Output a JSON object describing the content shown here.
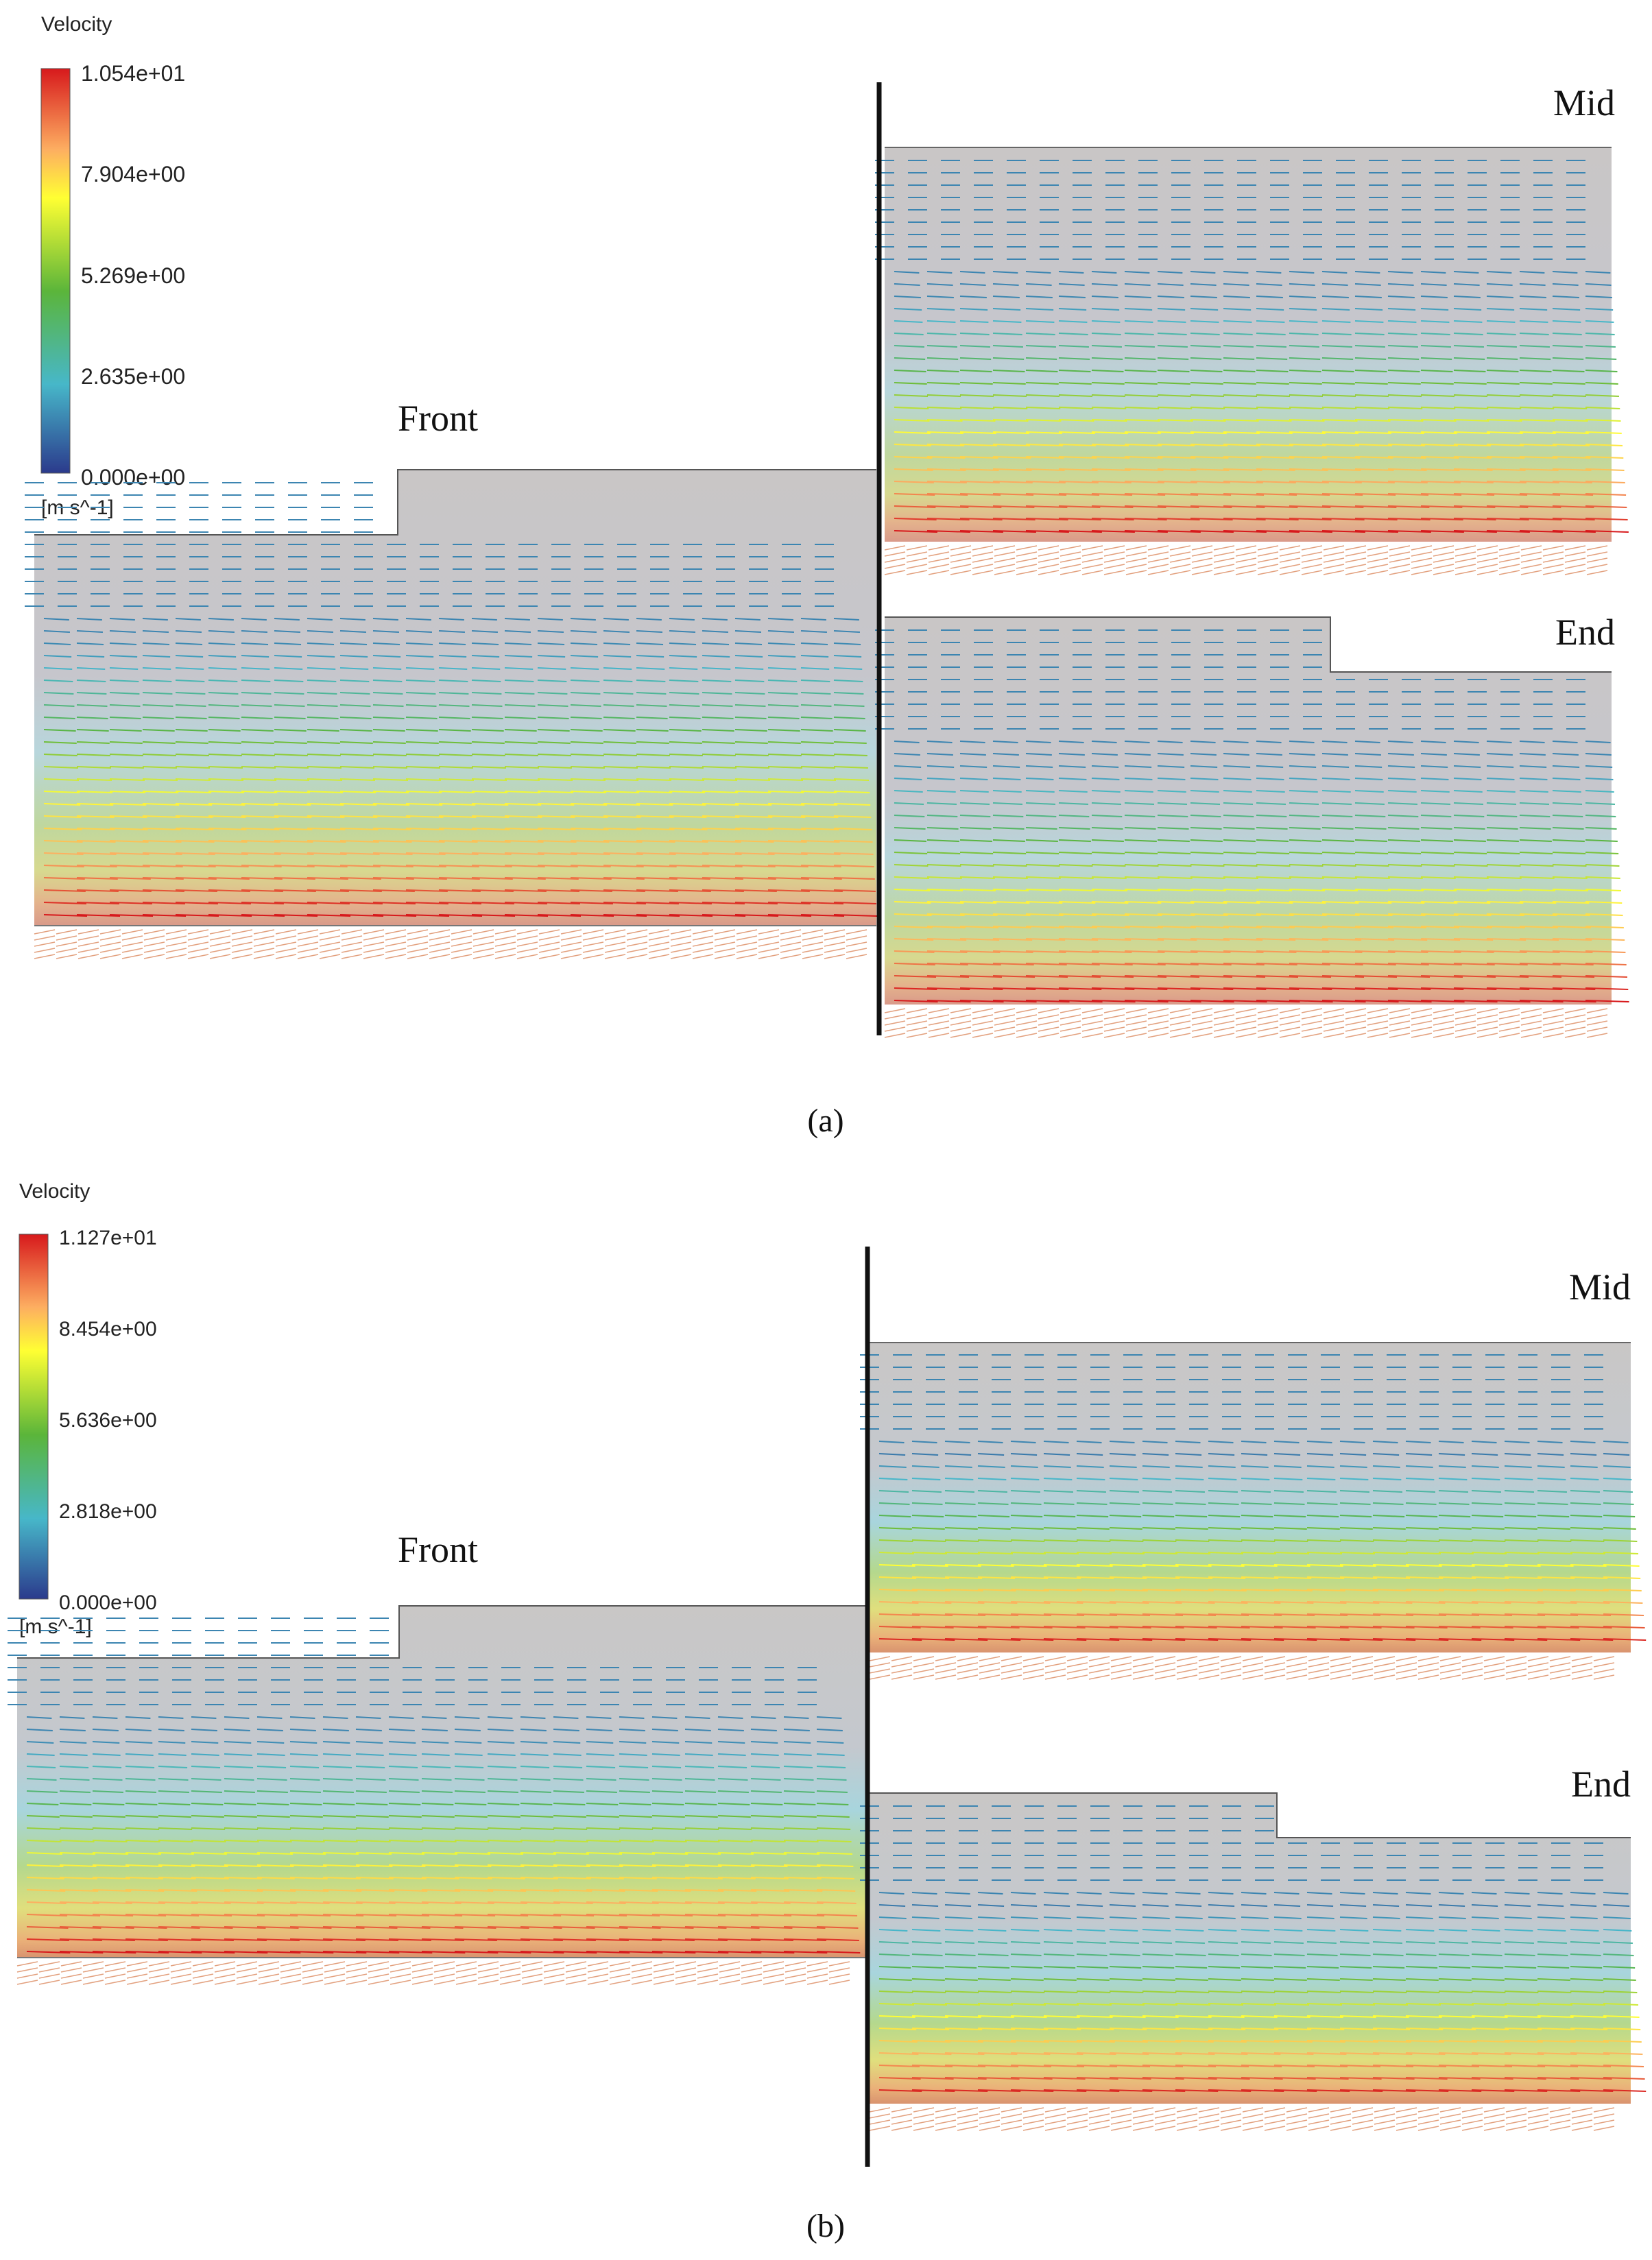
{
  "figure": {
    "panels": [
      {
        "caption": "(a)",
        "legend": {
          "title": "Velocity",
          "ticks": [
            "1.054e+01",
            "7.904e+00",
            "5.269e+00",
            "2.635e+00",
            "0.000e+00"
          ],
          "unit": "[m s^-1]",
          "colormap": [
            "#d7191c",
            "#fdae61",
            "#ffff33",
            "#5bb53a",
            "#47b7c9",
            "#2b3a8c"
          ]
        },
        "sections": [
          {
            "label": "Front"
          },
          {
            "label": "Mid"
          },
          {
            "label": "End"
          }
        ]
      },
      {
        "caption": "(b)",
        "legend": {
          "title": "Velocity",
          "ticks": [
            "1.127e+01",
            "8.454e+00",
            "5.636e+00",
            "2.818e+00",
            "0.000e+00"
          ],
          "unit": "[m s^-1]",
          "colormap": [
            "#d7191c",
            "#fdae61",
            "#ffff33",
            "#5bb53a",
            "#47b7c9",
            "#2b3a8c"
          ]
        },
        "sections": [
          {
            "label": "Front"
          },
          {
            "label": "Mid"
          },
          {
            "label": "End"
          }
        ]
      }
    ]
  }
}
